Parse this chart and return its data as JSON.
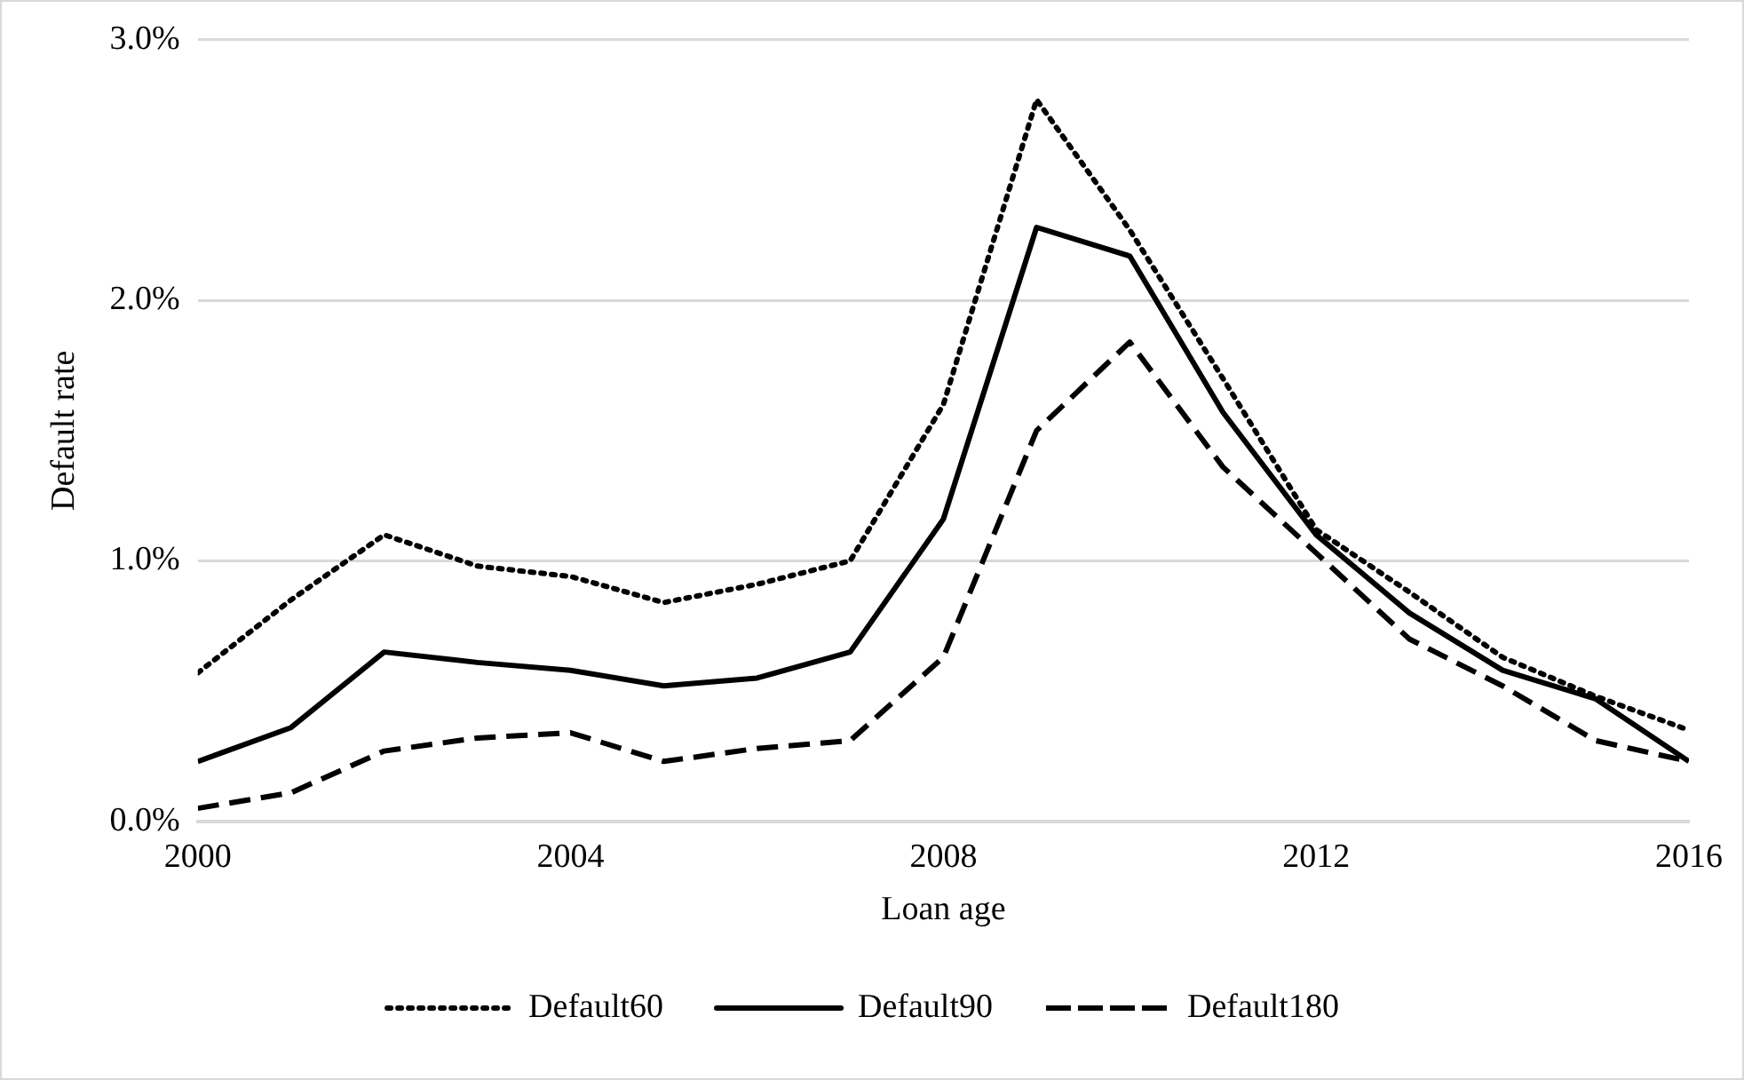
{
  "chart_data": {
    "type": "line",
    "xlabel": "Loan age",
    "ylabel": "Default rate",
    "x": [
      2000,
      2001,
      2002,
      2003,
      2004,
      2005,
      2006,
      2007,
      2008,
      2009,
      2010,
      2011,
      2012,
      2013,
      2014,
      2015,
      2016
    ],
    "xlim": [
      2000,
      2016
    ],
    "xticks": [
      2000,
      2004,
      2008,
      2012,
      2016
    ],
    "ylim": [
      0,
      3
    ],
    "yticks": [
      {
        "value": 0,
        "label": "0.0%"
      },
      {
        "value": 1,
        "label": "1.0%"
      },
      {
        "value": 2,
        "label": "2.0%"
      },
      {
        "value": 3,
        "label": "3.0%"
      }
    ],
    "grid": "y",
    "legend": "bottom",
    "marker": "none",
    "series": [
      {
        "name": "Default60",
        "color": "#000000",
        "line_style": "dotted",
        "values": [
          0.57,
          0.85,
          1.1,
          0.98,
          0.94,
          0.84,
          0.91,
          1.0,
          1.6,
          2.77,
          2.27,
          1.7,
          1.12,
          0.88,
          0.63,
          0.48,
          0.35
        ]
      },
      {
        "name": "Default90",
        "color": "#000000",
        "line_style": "solid",
        "values": [
          0.23,
          0.36,
          0.65,
          0.61,
          0.58,
          0.52,
          0.55,
          0.65,
          1.16,
          2.28,
          2.17,
          1.57,
          1.1,
          0.8,
          0.58,
          0.47,
          0.23
        ]
      },
      {
        "name": "Default180",
        "color": "#000000",
        "line_style": "dashed",
        "values": [
          0.05,
          0.11,
          0.27,
          0.32,
          0.34,
          0.23,
          0.28,
          0.31,
          0.63,
          1.5,
          1.84,
          1.36,
          1.03,
          0.7,
          0.52,
          0.31,
          0.23
        ]
      }
    ]
  }
}
